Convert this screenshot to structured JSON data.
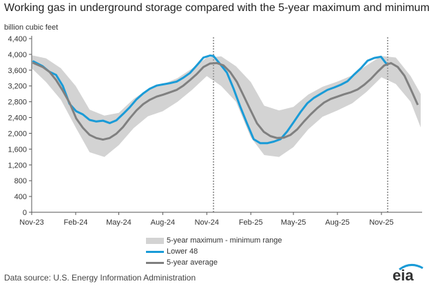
{
  "title": "Working gas in underground  storage compared with the 5-year maximum and minimum",
  "source": "Data source:  U.S. Energy Information Administration",
  "logo_text": "eia",
  "colors": {
    "lower48": "#1a9bd7",
    "average": "#808080",
    "band": "#d3d3d3",
    "divider": "#a0a0a0"
  },
  "chart_data": {
    "type": "line",
    "title": "Working gas in underground  storage compared with the 5-year maximum and minimum",
    "ylabel": "billion cubic feet",
    "xlabel": "",
    "ylim": [
      0,
      4400
    ],
    "yticks": [
      0,
      400,
      800,
      1200,
      1600,
      2000,
      2400,
      2800,
      3200,
      3600,
      4000,
      4400
    ],
    "ytick_labels": [
      "0",
      "400",
      "800",
      "1,200",
      "1,600",
      "2,000",
      "2,400",
      "2,800",
      "3,200",
      "3,600",
      "4,000",
      "4,400"
    ],
    "xlim": [
      "2023-11-01",
      "2026-01-25"
    ],
    "xticks": [
      "2023-11-01",
      "2024-02-01",
      "2024-05-01",
      "2024-08-01",
      "2024-11-01",
      "2025-02-01",
      "2025-05-01",
      "2025-08-01",
      "2025-11-01"
    ],
    "xtick_labels": [
      "Nov-23",
      "Feb-24",
      "May-24",
      "Aug-24",
      "Nov-24",
      "Feb-25",
      "May-25",
      "Aug-25",
      "Nov-25"
    ],
    "dividers": [
      "2024-11-15",
      "2025-11-14"
    ],
    "grid": false,
    "legend": {
      "placement": "bottom-center",
      "entries": [
        "5-year maximum - minimum range",
        "Lower 48",
        "5-year average"
      ]
    },
    "series": [
      {
        "name": "Lower 48",
        "type": "line",
        "x": [
          "2023-11-03",
          "2023-11-24",
          "2023-12-08",
          "2023-12-22",
          "2024-01-05",
          "2024-01-19",
          "2024-02-02",
          "2024-02-16",
          "2024-03-01",
          "2024-03-15",
          "2024-03-29",
          "2024-04-12",
          "2024-04-26",
          "2024-05-10",
          "2024-05-24",
          "2024-06-07",
          "2024-06-21",
          "2024-07-05",
          "2024-07-19",
          "2024-08-02",
          "2024-08-16",
          "2024-08-30",
          "2024-09-13",
          "2024-09-27",
          "2024-10-11",
          "2024-10-25",
          "2024-11-08",
          "2024-11-15",
          "2024-11-29",
          "2024-12-13",
          "2024-12-27",
          "2025-01-10",
          "2025-01-24",
          "2025-02-07",
          "2025-02-21",
          "2025-03-07",
          "2025-03-21",
          "2025-04-04",
          "2025-04-18",
          "2025-05-02",
          "2025-05-16",
          "2025-05-30",
          "2025-06-13",
          "2025-06-27",
          "2025-07-11",
          "2025-07-25",
          "2025-08-08",
          "2025-08-22",
          "2025-09-05",
          "2025-09-19",
          "2025-10-03",
          "2025-10-17",
          "2025-10-31",
          "2025-11-14"
        ],
        "y": [
          3830,
          3700,
          3560,
          3480,
          3200,
          2750,
          2560,
          2480,
          2340,
          2300,
          2320,
          2260,
          2330,
          2490,
          2660,
          2860,
          3010,
          3130,
          3210,
          3240,
          3270,
          3310,
          3410,
          3530,
          3720,
          3920,
          3970,
          3960,
          3750,
          3540,
          3130,
          2670,
          2250,
          1850,
          1750,
          1750,
          1790,
          1850,
          2050,
          2290,
          2540,
          2760,
          2900,
          3000,
          3100,
          3160,
          3230,
          3320,
          3490,
          3650,
          3840,
          3910,
          3940,
          3720
        ]
      },
      {
        "name": "5-year average",
        "type": "line",
        "x": [
          "2023-11-03",
          "2023-11-24",
          "2023-12-08",
          "2023-12-22",
          "2024-01-05",
          "2024-01-19",
          "2024-02-02",
          "2024-02-16",
          "2024-03-01",
          "2024-03-15",
          "2024-03-29",
          "2024-04-12",
          "2024-04-26",
          "2024-05-10",
          "2024-05-24",
          "2024-06-07",
          "2024-06-21",
          "2024-07-05",
          "2024-07-19",
          "2024-08-02",
          "2024-08-16",
          "2024-08-30",
          "2024-09-13",
          "2024-09-27",
          "2024-10-11",
          "2024-10-25",
          "2024-11-08",
          "2024-11-22",
          "2024-12-06",
          "2024-12-20",
          "2025-01-03",
          "2025-01-17",
          "2025-01-31",
          "2025-02-14",
          "2025-02-28",
          "2025-03-14",
          "2025-03-28",
          "2025-04-11",
          "2025-04-25",
          "2025-05-09",
          "2025-05-23",
          "2025-06-06",
          "2025-06-20",
          "2025-07-04",
          "2025-07-18",
          "2025-08-01",
          "2025-08-15",
          "2025-08-29",
          "2025-09-12",
          "2025-09-26",
          "2025-10-10",
          "2025-10-24",
          "2025-11-07",
          "2025-11-21",
          "2025-12-05",
          "2025-12-19",
          "2026-01-02",
          "2026-01-16"
        ],
        "y": [
          3790,
          3680,
          3560,
          3350,
          3080,
          2780,
          2380,
          2140,
          1960,
          1880,
          1840,
          1880,
          1990,
          2160,
          2380,
          2580,
          2740,
          2850,
          2930,
          2980,
          3040,
          3100,
          3210,
          3350,
          3500,
          3680,
          3770,
          3780,
          3720,
          3550,
          3300,
          2950,
          2600,
          2250,
          2040,
          1930,
          1880,
          1890,
          1960,
          2100,
          2300,
          2480,
          2640,
          2780,
          2870,
          2930,
          2990,
          3040,
          3110,
          3230,
          3380,
          3560,
          3720,
          3780,
          3680,
          3460,
          3100,
          2720
        ]
      },
      {
        "name": "5-year maximum - minimum range",
        "type": "area",
        "x": [
          "2023-11-01",
          "2023-12-01",
          "2024-01-01",
          "2024-02-01",
          "2024-03-01",
          "2024-04-01",
          "2024-05-01",
          "2024-06-01",
          "2024-07-01",
          "2024-08-01",
          "2024-09-01",
          "2024-10-01",
          "2024-11-01",
          "2024-12-01",
          "2025-01-01",
          "2025-02-01",
          "2025-03-01",
          "2025-04-01",
          "2025-05-01",
          "2025-06-01",
          "2025-07-01",
          "2025-08-01",
          "2025-09-01",
          "2025-10-01",
          "2025-11-01",
          "2025-12-01",
          "2026-01-01",
          "2026-01-22"
        ],
        "max": [
          3980,
          3900,
          3650,
          3200,
          2600,
          2450,
          2520,
          2870,
          3120,
          3240,
          3400,
          3640,
          3920,
          3950,
          3700,
          3300,
          2700,
          2580,
          2670,
          2980,
          3180,
          3310,
          3470,
          3720,
          3960,
          3920,
          3450,
          3000
        ],
        "min": [
          3650,
          3300,
          2850,
          2150,
          1520,
          1400,
          1700,
          2130,
          2430,
          2560,
          2800,
          3100,
          3450,
          3200,
          2800,
          1900,
          1450,
          1400,
          1650,
          2100,
          2420,
          2580,
          2760,
          3050,
          3420,
          3250,
          2800,
          2150
        ]
      }
    ]
  }
}
